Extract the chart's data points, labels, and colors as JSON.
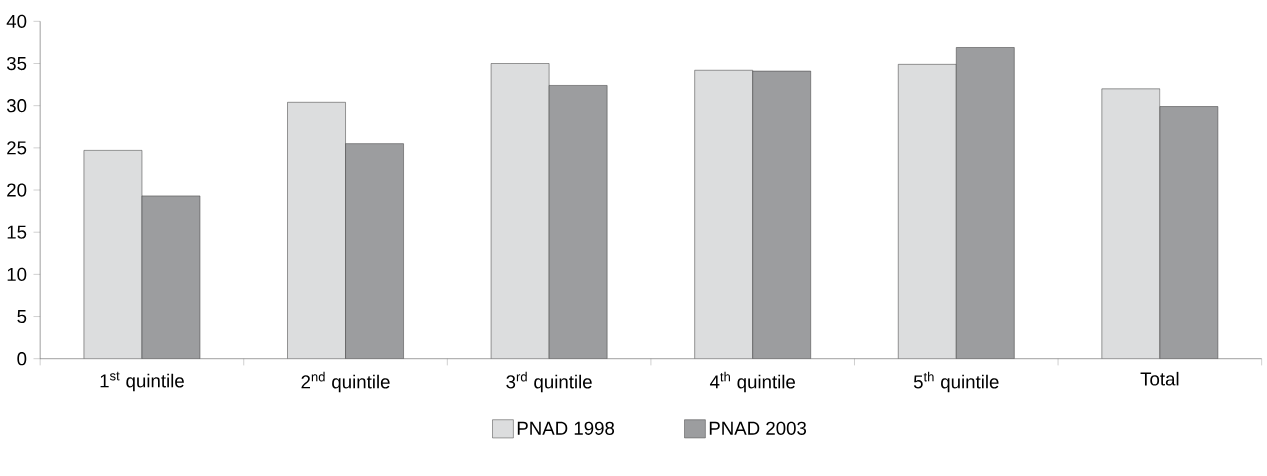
{
  "chart_data": {
    "type": "bar",
    "categories": [
      "1$^{st}$ quintile",
      "2$^{nd}$ quintile",
      "3$^{rd}$ quintile",
      "4$^{th}$ quintile",
      "5$^{th}$ quintile",
      "Total"
    ],
    "series": [
      {
        "name": "PNAD 1998",
        "color": "#dcddde",
        "values": [
          24.7,
          30.4,
          35.0,
          34.2,
          34.9,
          32.0
        ]
      },
      {
        "name": "PNAD 2003",
        "color": "#9c9d9f",
        "values": [
          19.3,
          25.5,
          32.4,
          34.1,
          36.9,
          29.9
        ]
      }
    ],
    "ylim": [
      0,
      40
    ],
    "yticks": [
      0,
      5,
      10,
      15,
      20,
      25,
      30,
      35,
      40
    ],
    "legend": "bottom",
    "grid": false
  }
}
